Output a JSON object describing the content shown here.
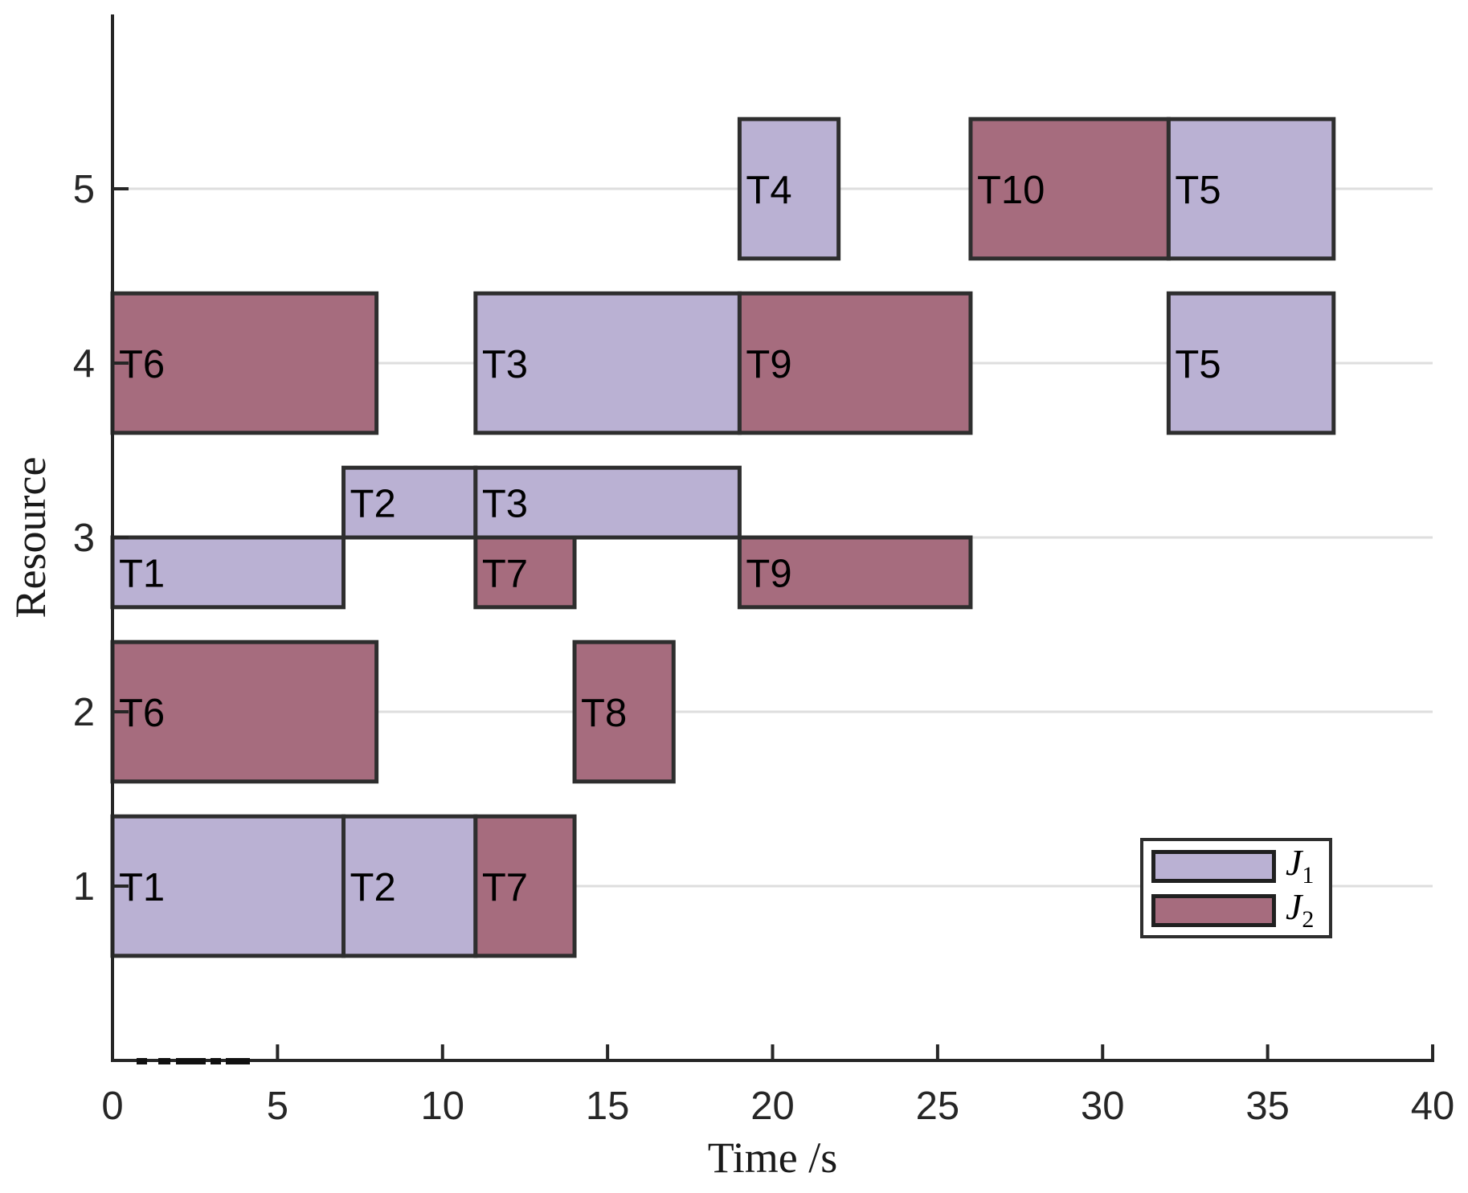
{
  "chart_data": {
    "type": "gantt",
    "xlabel": "Time /s",
    "ylabel": "Resource",
    "xlim": [
      0,
      40
    ],
    "ylim": [
      0,
      6
    ],
    "xticks": [
      0,
      5,
      10,
      15,
      20,
      25,
      30,
      35,
      40
    ],
    "yticks": [
      1,
      2,
      3,
      4,
      5
    ],
    "grid": "horizontal-only",
    "colors": {
      "J1": "#BAB1D3",
      "J2": "#A66C7E",
      "bar_edge": "#2E2E2E",
      "axis": "#262626",
      "gridline": "#DEDEDE",
      "tick_label": "#262626",
      "task_label": "#000000",
      "background": "#FFFFFF"
    },
    "legend": {
      "position": "lower-right",
      "entries": [
        {
          "name": "J",
          "subscript": "1",
          "job": "J1",
          "color": "#BAB1D3"
        },
        {
          "name": "J",
          "subscript": "2",
          "job": "J2",
          "color": "#A66C7E"
        }
      ]
    },
    "tasks": [
      {
        "label": "T1",
        "job": "J1",
        "resource": 1,
        "start": 0,
        "end": 7,
        "lane": "full"
      },
      {
        "label": "T2",
        "job": "J1",
        "resource": 1,
        "start": 7,
        "end": 11,
        "lane": "full"
      },
      {
        "label": "T7",
        "job": "J2",
        "resource": 1,
        "start": 11,
        "end": 14,
        "lane": "full"
      },
      {
        "label": "T6",
        "job": "J2",
        "resource": 2,
        "start": 0,
        "end": 8,
        "lane": "full"
      },
      {
        "label": "T8",
        "job": "J2",
        "resource": 2,
        "start": 14,
        "end": 17,
        "lane": "full"
      },
      {
        "label": "T1",
        "job": "J1",
        "resource": 3,
        "start": 0,
        "end": 7,
        "lane": "lower"
      },
      {
        "label": "T2",
        "job": "J1",
        "resource": 3,
        "start": 7,
        "end": 11,
        "lane": "upper"
      },
      {
        "label": "T3",
        "job": "J1",
        "resource": 3,
        "start": 11,
        "end": 19,
        "lane": "upper"
      },
      {
        "label": "T7",
        "job": "J2",
        "resource": 3,
        "start": 11,
        "end": 14,
        "lane": "lower"
      },
      {
        "label": "T9",
        "job": "J2",
        "resource": 3,
        "start": 19,
        "end": 26,
        "lane": "lower"
      },
      {
        "label": "T6",
        "job": "J2",
        "resource": 4,
        "start": 0,
        "end": 8,
        "lane": "full"
      },
      {
        "label": "T3",
        "job": "J1",
        "resource": 4,
        "start": 11,
        "end": 19,
        "lane": "full"
      },
      {
        "label": "T9",
        "job": "J2",
        "resource": 4,
        "start": 19,
        "end": 26,
        "lane": "full"
      },
      {
        "label": "T5",
        "job": "J1",
        "resource": 4,
        "start": 32,
        "end": 37,
        "lane": "full"
      },
      {
        "label": "T4",
        "job": "J1",
        "resource": 5,
        "start": 19,
        "end": 22,
        "lane": "full"
      },
      {
        "label": "T10",
        "job": "J2",
        "resource": 5,
        "start": 26,
        "end": 32,
        "lane": "full"
      },
      {
        "label": "T5",
        "job": "J1",
        "resource": 5,
        "start": 32,
        "end": 37,
        "lane": "full"
      }
    ]
  }
}
